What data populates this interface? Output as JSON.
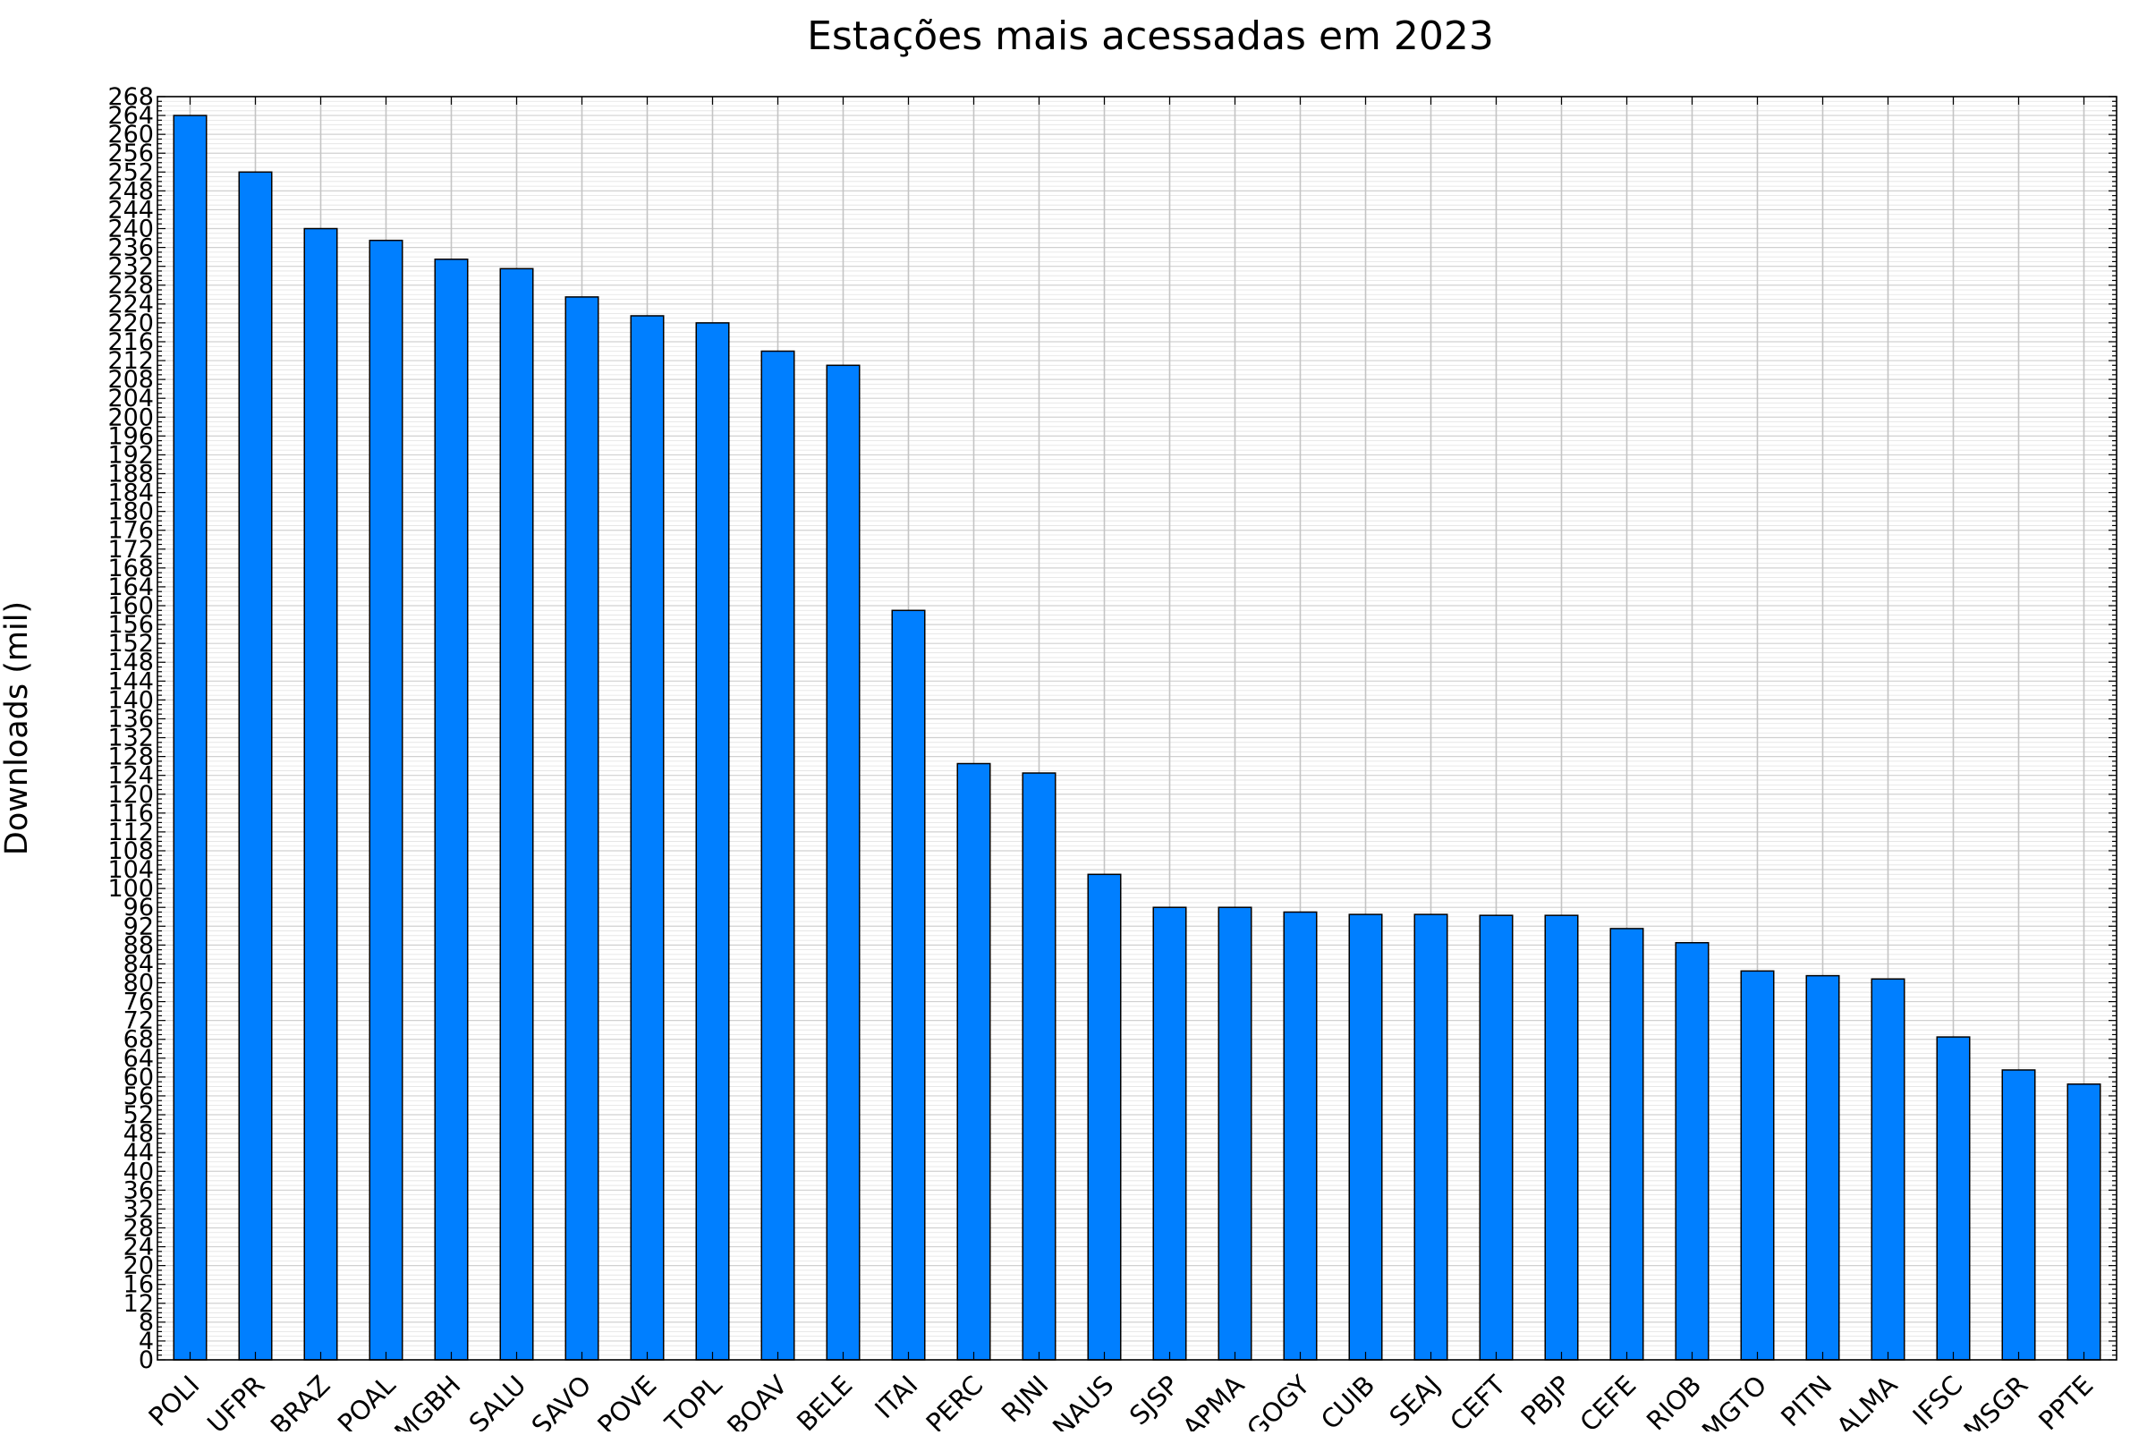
{
  "chart_data": {
    "type": "bar",
    "title": "Estações mais acessadas em 2023",
    "xlabel": "",
    "ylabel": "Downloads (mil)",
    "ylim": [
      0,
      268
    ],
    "ytick_step": 4,
    "grid": true,
    "bar_color": "#007fff",
    "categories": [
      "POLI",
      "UFPR",
      "BRAZ",
      "POAL",
      "MGBH",
      "SALU",
      "SAVO",
      "POVE",
      "TOPL",
      "BOAV",
      "BELE",
      "ITAI",
      "PERC",
      "RJNI",
      "NAUS",
      "SJSP",
      "APMA",
      "GOGY",
      "CUIB",
      "SEAJ",
      "CEFT",
      "PBJP",
      "CEFE",
      "RIOB",
      "MGTO",
      "PITN",
      "ALMA",
      "IFSC",
      "MSGR",
      "PPTE"
    ],
    "values": [
      264,
      252,
      240,
      237.5,
      233.5,
      231.5,
      225.5,
      221.5,
      220,
      214,
      211,
      159,
      126.5,
      124.5,
      103,
      96,
      96,
      95,
      94.5,
      94.5,
      94.3,
      94.3,
      91.5,
      88.5,
      82.5,
      81.5,
      80.8,
      68.5,
      61.5,
      58.5
    ]
  }
}
